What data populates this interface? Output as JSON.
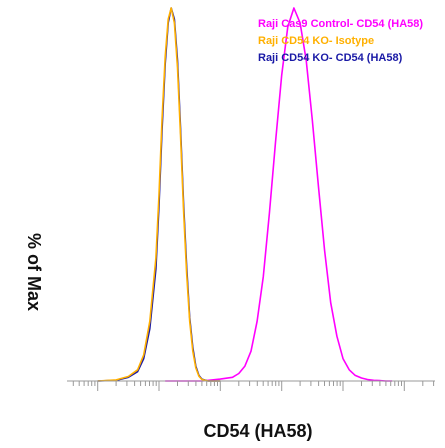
{
  "chart_data": {
    "type": "line",
    "title": "",
    "xlabel": "CD54 (HA58)",
    "ylabel": "% of Max",
    "x_scale": "log",
    "xlim": [
      0.316,
      316228
    ],
    "ylim": [
      0,
      100
    ],
    "grid": false,
    "legend_position": "top-right",
    "series": [
      {
        "name": "Raji Cas9 Control- CD54 (HA58)",
        "color": "#ff00ff",
        "x": [
          12.6,
          50.1,
          100,
          158,
          200,
          251,
          316,
          398,
          501,
          631,
          794,
          1000,
          1260,
          1580,
          2000,
          2510,
          3160,
          3980,
          5010,
          6310,
          7940,
          10000,
          12600,
          15800,
          20000,
          25100,
          31600,
          39800,
          50100,
          63100
        ],
        "y": [
          0,
          0,
          0.5,
          1,
          2,
          4,
          8,
          16,
          28,
          45,
          64,
          82,
          95,
          100,
          96,
          86,
          70,
          52,
          35,
          21,
          12,
          6,
          3,
          1.5,
          0.8,
          0.4,
          0.2,
          0.1,
          0,
          0
        ]
      },
      {
        "name": "Raji CD54 KO- Isotype",
        "color": "#ffb000",
        "x": [
          1,
          2,
          3.16,
          4.47,
          5.62,
          7.08,
          8.91,
          10,
          11.2,
          12.6,
          14.1,
          15.8,
          17.8,
          20,
          22.4,
          25.1,
          28.2,
          31.6,
          35.5,
          39.8,
          44.7,
          50.1,
          63.1,
          100
        ],
        "y": [
          0,
          0.3,
          1.2,
          3,
          7,
          16,
          33,
          50,
          70,
          87,
          97,
          100,
          96,
          84,
          66,
          46,
          29,
          16,
          8,
          3.5,
          1.3,
          0.4,
          0,
          0
        ]
      },
      {
        "name": "Raji CD54 KO- CD54 (HA58)",
        "color": "#1a1aa6",
        "x": [
          1,
          2,
          3.16,
          4.47,
          5.62,
          7.08,
          8.91,
          10,
          11.2,
          12.6,
          14.1,
          15.8,
          17.8,
          20,
          22.4,
          25.1,
          28.2,
          31.6,
          35.5,
          39.8,
          44.7,
          50.1,
          63.1,
          100
        ],
        "y": [
          0,
          0.2,
          1,
          2.5,
          6,
          14,
          30,
          47,
          67,
          85,
          96,
          100,
          97,
          86,
          68,
          48,
          31,
          17,
          9,
          4,
          1.5,
          0.5,
          0,
          0
        ]
      }
    ]
  }
}
